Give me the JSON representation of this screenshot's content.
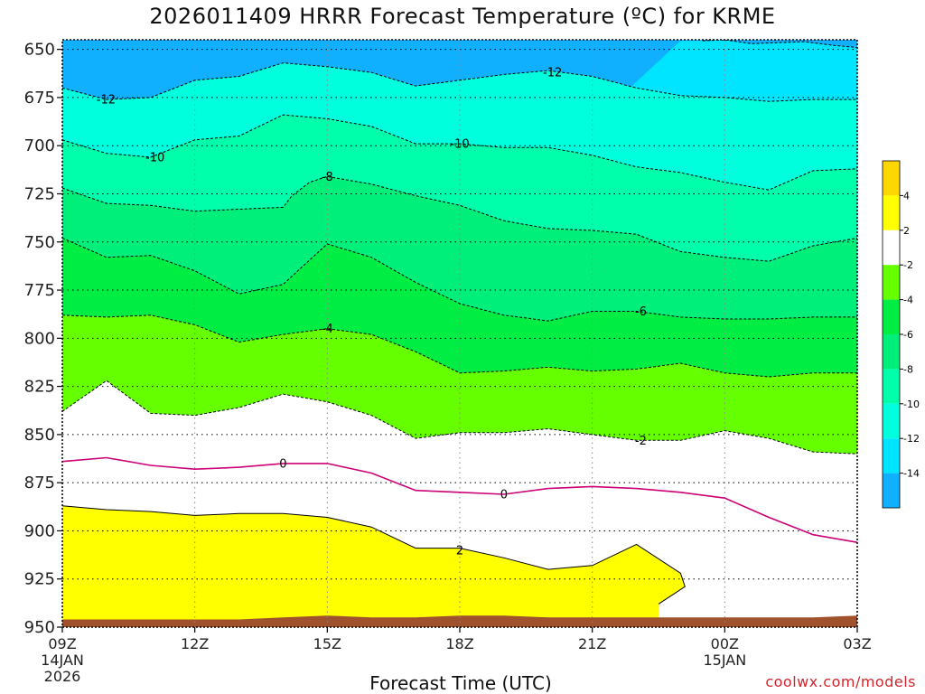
{
  "title": "2026011409 HRRR Forecast Temperature (ºC) for KRME",
  "credit": "coolwx.com/models",
  "colors": {
    "c_gt4": "#ffd700",
    "c_2_4": "#ffff00",
    "c_m2_2": "#ffffff",
    "c_m4_m2": "#66ff00",
    "c_m6_m4": "#00ee44",
    "c_m8_m6": "#00ee7a",
    "c_m10_m8": "#00ffaa",
    "c_m12_m10": "#00ffdd",
    "c_m14_m12": "#00e5ff",
    "c_lt_m14": "#10b0ff",
    "terrain": "#a0522d",
    "warm_contour": "#cc0077",
    "line": "#000000"
  },
  "chart_data": {
    "type": "contour",
    "title": "2026011409 HRRR Forecast Temperature (ºC) for KRME",
    "xlabel": "Forecast Time (UTC)",
    "ylabel": "",
    "x_range_hours": [
      0,
      18
    ],
    "ylim": [
      950,
      645
    ],
    "y_ticks": [
      650,
      675,
      700,
      725,
      750,
      775,
      800,
      825,
      850,
      875,
      900,
      925,
      950
    ],
    "x_ticks": [
      {
        "hour": 0,
        "lines": [
          "09Z",
          "14JAN",
          "2026"
        ]
      },
      {
        "hour": 3,
        "lines": [
          "12Z"
        ]
      },
      {
        "hour": 6,
        "lines": [
          "15Z"
        ]
      },
      {
        "hour": 9,
        "lines": [
          "18Z"
        ]
      },
      {
        "hour": 12,
        "lines": [
          "21Z"
        ]
      },
      {
        "hour": 15,
        "lines": [
          "00Z",
          "15JAN"
        ]
      },
      {
        "hour": 18,
        "lines": [
          "03Z"
        ]
      }
    ],
    "grid": true,
    "colorbar_ticks": [
      "4",
      "2",
      "-2",
      "-4",
      "-6",
      "-8",
      "-10",
      "-12",
      "-14"
    ],
    "contours": [
      {
        "level": -14,
        "points": [
          [
            14.5,
            645.5
          ],
          [
            15,
            645
          ],
          [
            15.6,
            647
          ],
          [
            16.8,
            646
          ],
          [
            17.5,
            648
          ],
          [
            18,
            649
          ]
        ]
      },
      {
        "level": -12,
        "points": [
          [
            0,
            670
          ],
          [
            1,
            676
          ],
          [
            2,
            675
          ],
          [
            3,
            666
          ],
          [
            4,
            664
          ],
          [
            5,
            657
          ],
          [
            6,
            659
          ],
          [
            7,
            662
          ],
          [
            8,
            669
          ],
          [
            9,
            666
          ],
          [
            10,
            663
          ],
          [
            11,
            661
          ],
          [
            12,
            664
          ],
          [
            13,
            670
          ],
          [
            14,
            674
          ],
          [
            15,
            675
          ],
          [
            16,
            677
          ],
          [
            17,
            676
          ],
          [
            18,
            676
          ]
        ]
      },
      {
        "level": -10,
        "points": [
          [
            0,
            697
          ],
          [
            1,
            704
          ],
          [
            2,
            706
          ],
          [
            3,
            697
          ],
          [
            4,
            695
          ],
          [
            5,
            684
          ],
          [
            6,
            686
          ],
          [
            7,
            690
          ],
          [
            8,
            699
          ],
          [
            9,
            699
          ],
          [
            10,
            701
          ],
          [
            11,
            701
          ],
          [
            12,
            705
          ],
          [
            13,
            711
          ],
          [
            14,
            714
          ],
          [
            15,
            719
          ],
          [
            16,
            723
          ],
          [
            17,
            713
          ],
          [
            18,
            712
          ]
        ]
      },
      {
        "level": -8,
        "points": [
          [
            0,
            722
          ],
          [
            1,
            730
          ],
          [
            2,
            731
          ],
          [
            3,
            734
          ],
          [
            4,
            733
          ],
          [
            5,
            732
          ],
          [
            5.2,
            726
          ],
          [
            5.6,
            719
          ],
          [
            6,
            716
          ],
          [
            7,
            720
          ],
          [
            8,
            726
          ],
          [
            9,
            731
          ],
          [
            10,
            739
          ],
          [
            11,
            743
          ],
          [
            12,
            744
          ],
          [
            13,
            746
          ],
          [
            14,
            755
          ],
          [
            15,
            758
          ],
          [
            16,
            760
          ],
          [
            17,
            752
          ],
          [
            18,
            748
          ]
        ]
      },
      {
        "level": -6,
        "points": [
          [
            0,
            748
          ],
          [
            1,
            758
          ],
          [
            2,
            757
          ],
          [
            3,
            765
          ],
          [
            4,
            777
          ],
          [
            5,
            772
          ],
          [
            6,
            751
          ],
          [
            7,
            758
          ],
          [
            8,
            771
          ],
          [
            9,
            782
          ],
          [
            10,
            788
          ],
          [
            11,
            791
          ],
          [
            12,
            786
          ],
          [
            13,
            786
          ],
          [
            14,
            789
          ],
          [
            15,
            790
          ],
          [
            16,
            790
          ],
          [
            17,
            789
          ],
          [
            18,
            789
          ]
        ]
      },
      {
        "level": -4,
        "points": [
          [
            0,
            788
          ],
          [
            1,
            789
          ],
          [
            2,
            788
          ],
          [
            3,
            793
          ],
          [
            4,
            802
          ],
          [
            5,
            798
          ],
          [
            6,
            795
          ],
          [
            7,
            798
          ],
          [
            8,
            807
          ],
          [
            9,
            818
          ],
          [
            10,
            817
          ],
          [
            11,
            815
          ],
          [
            12,
            817
          ],
          [
            13,
            816
          ],
          [
            14,
            813
          ],
          [
            15,
            818
          ],
          [
            16,
            820
          ],
          [
            17,
            818
          ],
          [
            18,
            818
          ]
        ]
      },
      {
        "level": -2,
        "points": [
          [
            0,
            838
          ],
          [
            1,
            822
          ],
          [
            2,
            839
          ],
          [
            3,
            840
          ],
          [
            4,
            836
          ],
          [
            5,
            829
          ],
          [
            6,
            833
          ],
          [
            7,
            840
          ],
          [
            8,
            852
          ],
          [
            9,
            849
          ],
          [
            10,
            849
          ],
          [
            11,
            847
          ],
          [
            12,
            850
          ],
          [
            13,
            853
          ],
          [
            14,
            853
          ],
          [
            15,
            848
          ],
          [
            16,
            852
          ],
          [
            17,
            859
          ],
          [
            18,
            860
          ]
        ]
      },
      {
        "level": 0,
        "points": [
          [
            0,
            864
          ],
          [
            1,
            862
          ],
          [
            2,
            866
          ],
          [
            3,
            868
          ],
          [
            4,
            867
          ],
          [
            5,
            865
          ],
          [
            6,
            865
          ],
          [
            7,
            870
          ],
          [
            8,
            879
          ],
          [
            9,
            880
          ],
          [
            10,
            881
          ],
          [
            11,
            878
          ],
          [
            12,
            877
          ],
          [
            13,
            878
          ],
          [
            14,
            880
          ],
          [
            15,
            883
          ],
          [
            16,
            893
          ],
          [
            17,
            902
          ],
          [
            18,
            906
          ]
        ]
      },
      {
        "level": 2,
        "points": [
          [
            0,
            887
          ],
          [
            1,
            889
          ],
          [
            2,
            890
          ],
          [
            3,
            892
          ],
          [
            4,
            891
          ],
          [
            5,
            891
          ],
          [
            6,
            893
          ],
          [
            7,
            898
          ],
          [
            8,
            909
          ],
          [
            9,
            909
          ],
          [
            10,
            914
          ],
          [
            11,
            920
          ],
          [
            12,
            918
          ],
          [
            13,
            907
          ],
          [
            14,
            922
          ],
          [
            14.1,
            929
          ],
          [
            13.9,
            932
          ],
          [
            13.5,
            938
          ]
        ]
      }
    ],
    "contour_labels": [
      {
        "level": -12,
        "text": "-12",
        "hour": 0.99,
        "p": 676
      },
      {
        "level": -12,
        "text": "-12",
        "hour": 11.1,
        "p": 662
      },
      {
        "level": -10,
        "text": "-10",
        "hour": 2.1,
        "p": 706
      },
      {
        "level": -10,
        "text": "-10",
        "hour": 9.0,
        "p": 699
      },
      {
        "level": -8,
        "text": "-8",
        "hour": 6.0,
        "p": 716
      },
      {
        "level": -6,
        "text": "-6",
        "hour": 13.1,
        "p": 786
      },
      {
        "level": -4,
        "text": "-4",
        "hour": 6.0,
        "p": 795
      },
      {
        "level": -2,
        "text": "-2",
        "hour": 13.1,
        "p": 853
      },
      {
        "level": 0,
        "text": "0",
        "hour": 5.0,
        "p": 865
      },
      {
        "level": 0,
        "text": "0",
        "hour": 10.0,
        "p": 881
      },
      {
        "level": 2,
        "text": "2",
        "hour": 9.0,
        "p": 910
      }
    ],
    "terrain_top": [
      [
        0,
        946
      ],
      [
        4,
        946
      ],
      [
        5,
        945
      ],
      [
        6,
        944
      ],
      [
        7,
        945
      ],
      [
        8,
        945
      ],
      [
        9,
        944
      ],
      [
        10,
        944
      ],
      [
        11,
        945
      ],
      [
        12,
        945
      ],
      [
        13,
        945
      ],
      [
        14,
        945
      ],
      [
        15,
        945
      ],
      [
        16,
        945
      ],
      [
        17,
        945
      ],
      [
        18,
        944
      ]
    ]
  }
}
